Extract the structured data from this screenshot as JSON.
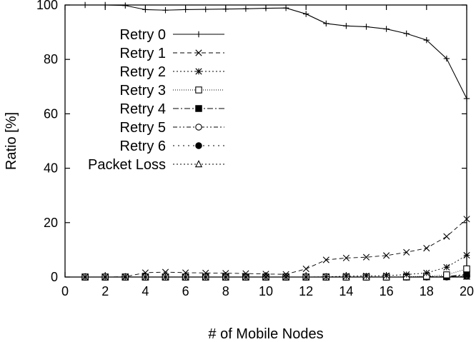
{
  "chart_data": {
    "type": "line",
    "title": "",
    "xlabel": "# of Mobile Nodes",
    "ylabel": "Ratio [%]",
    "xlim": [
      0,
      20
    ],
    "ylim": [
      0,
      100
    ],
    "xticks": [
      0,
      2,
      4,
      6,
      8,
      10,
      12,
      14,
      16,
      18,
      20
    ],
    "yticks": [
      0,
      20,
      40,
      60,
      80,
      100
    ],
    "grid": false,
    "legend_position": "top-center",
    "x": [
      1,
      2,
      3,
      4,
      5,
      6,
      7,
      8,
      9,
      10,
      11,
      12,
      13,
      14,
      15,
      16,
      17,
      18,
      19,
      20
    ],
    "series": [
      {
        "name": "Retry 0",
        "marker": "plus",
        "dash": "solid",
        "values": [
          100,
          100,
          99.8,
          98.3,
          98.1,
          98.3,
          98.4,
          98.5,
          98.6,
          98.8,
          98.9,
          96.7,
          93.2,
          92.3,
          92.0,
          91.2,
          89.5,
          87.1,
          80.3,
          65.6
        ]
      },
      {
        "name": "Retry 1",
        "marker": "x",
        "dash": "dashed",
        "values": [
          0,
          0,
          0.1,
          1.6,
          1.8,
          1.6,
          1.5,
          1.4,
          1.3,
          1.1,
          1.0,
          3.0,
          6.3,
          7.0,
          7.3,
          7.9,
          9.1,
          10.6,
          14.9,
          21.3
        ]
      },
      {
        "name": "Retry 2",
        "marker": "star",
        "dash": "dotted",
        "values": [
          0,
          0,
          0,
          0,
          0,
          0,
          0,
          0,
          0,
          0,
          0,
          0,
          0.1,
          0.3,
          0.4,
          0.5,
          0.9,
          1.5,
          3.6,
          8.0
        ]
      },
      {
        "name": "Retry 3",
        "marker": "open-square",
        "dash": "fine-dotted",
        "values": [
          0,
          0,
          0,
          0,
          0,
          0,
          0,
          0,
          0,
          0,
          0,
          0,
          0,
          0,
          0,
          0,
          0.1,
          0.3,
          0.8,
          3.0
        ]
      },
      {
        "name": "Retry 4",
        "marker": "filled-square",
        "dash": "dash-dot",
        "values": [
          0,
          0,
          0,
          0,
          0,
          0,
          0,
          0,
          0,
          0,
          0,
          0,
          0,
          0,
          0,
          0,
          0,
          0.1,
          0.2,
          1.0
        ]
      },
      {
        "name": "Retry 5",
        "marker": "open-circle",
        "dash": "dash-dot-dot",
        "values": [
          0,
          0,
          0,
          0,
          0,
          0,
          0,
          0,
          0,
          0,
          0,
          0,
          0,
          0,
          0,
          0,
          0,
          0,
          0.1,
          0.6
        ]
      },
      {
        "name": "Retry 6",
        "marker": "filled-circle",
        "dash": "sparse-dotted",
        "values": [
          0,
          0,
          0,
          0,
          0,
          0,
          0,
          0,
          0,
          0,
          0,
          0,
          0,
          0,
          0,
          0,
          0,
          0,
          0,
          0.3
        ]
      },
      {
        "name": "Packet Loss",
        "marker": "open-triangle",
        "dash": "dotted",
        "values": [
          0,
          0,
          0,
          0,
          0,
          0,
          0,
          0,
          0,
          0,
          0,
          0,
          0,
          0,
          0,
          0,
          0,
          0,
          0,
          0.2
        ]
      }
    ]
  }
}
